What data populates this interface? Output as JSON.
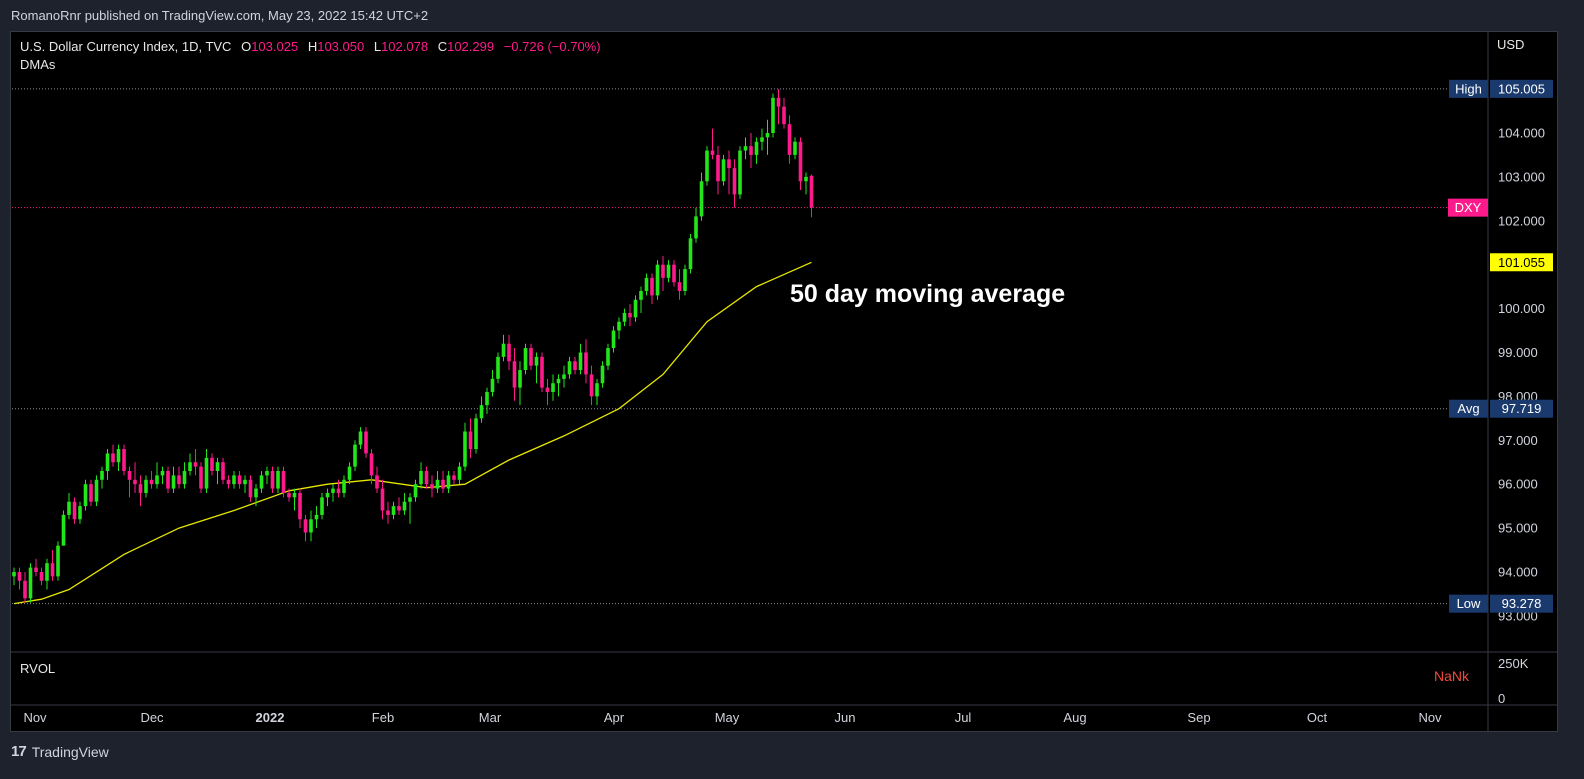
{
  "header": {
    "published": "RomanoRnr published on TradingView.com, May 23, 2022 15:42 UTC+2"
  },
  "legend": {
    "symbol": "U.S. Dollar Currency Index, 1D, TVC",
    "o_label": "O",
    "o": "103.025",
    "h_label": "H",
    "h": "103.050",
    "l_label": "L",
    "l": "102.078",
    "c_label": "C",
    "c": "102.299",
    "change": "−0.726 (−0.70%)",
    "indicator": "DMAs"
  },
  "annotation": "50 day moving average",
  "volume_pane": {
    "label": "RVOL",
    "value": "NaNk",
    "ticks": [
      "250K",
      "0"
    ]
  },
  "price_axis": {
    "currency": "USD"
  },
  "footer": {
    "brand": "TradingView",
    "logo_glyph": "17"
  },
  "colors": {
    "up": "#22e61a",
    "down": "#ff1a8c",
    "ma": "#e6e600",
    "level_label_bg": "#1a3a6e",
    "last_price_bg": "#ff1a8c",
    "ma_label_bg": "#ffff00"
  },
  "chart_data": {
    "type": "candlestick",
    "title": "U.S. Dollar Currency Index, 1D, TVC",
    "x_ticks": [
      "Nov",
      "Dec",
      "2022",
      "Feb",
      "Mar",
      "Apr",
      "May",
      "Jun",
      "Jul",
      "Aug",
      "Sep",
      "Oct",
      "Nov"
    ],
    "y_ticks": [
      "93.000",
      "94.000",
      "95.000",
      "96.000",
      "97.000",
      "98.000",
      "99.000",
      "100.000",
      "101.000",
      "102.000",
      "103.000",
      "104.000",
      "105.000"
    ],
    "y_range": [
      92.2,
      106.3
    ],
    "candles": [
      [
        93.9,
        94.1,
        93.7,
        94.0
      ],
      [
        94.0,
        94.1,
        93.6,
        93.8
      ],
      [
        93.8,
        94.0,
        93.3,
        93.4
      ],
      [
        93.4,
        94.2,
        93.3,
        94.1
      ],
      [
        94.1,
        94.3,
        93.9,
        94.0
      ],
      [
        94.0,
        94.1,
        93.7,
        93.8
      ],
      [
        93.8,
        94.3,
        93.6,
        94.2
      ],
      [
        94.2,
        94.5,
        93.8,
        93.9
      ],
      [
        93.9,
        94.7,
        93.8,
        94.6
      ],
      [
        94.6,
        95.4,
        94.6,
        95.3
      ],
      [
        95.3,
        95.8,
        95.2,
        95.6
      ],
      [
        95.6,
        95.7,
        95.1,
        95.2
      ],
      [
        95.2,
        95.6,
        95.1,
        95.5
      ],
      [
        95.5,
        96.1,
        95.4,
        96.0
      ],
      [
        96.0,
        96.1,
        95.5,
        95.6
      ],
      [
        95.6,
        96.2,
        95.5,
        96.1
      ],
      [
        96.1,
        96.4,
        95.9,
        96.3
      ],
      [
        96.3,
        96.8,
        96.1,
        96.7
      ],
      [
        96.7,
        96.9,
        96.4,
        96.5
      ],
      [
        96.5,
        96.9,
        96.3,
        96.8
      ],
      [
        96.8,
        96.9,
        96.2,
        96.3
      ],
      [
        96.3,
        96.4,
        95.7,
        96.1
      ],
      [
        96.1,
        96.5,
        95.8,
        96.0
      ],
      [
        96.0,
        96.2,
        95.5,
        95.8
      ],
      [
        95.8,
        96.2,
        95.7,
        96.1
      ],
      [
        96.1,
        96.3,
        95.9,
        96.0
      ],
      [
        96.0,
        96.5,
        95.9,
        96.2
      ],
      [
        96.2,
        96.4,
        96.0,
        96.3
      ],
      [
        96.3,
        96.4,
        95.8,
        95.9
      ],
      [
        95.9,
        96.4,
        95.8,
        96.2
      ],
      [
        96.2,
        96.4,
        95.9,
        96.0
      ],
      [
        96.0,
        96.5,
        95.9,
        96.3
      ],
      [
        96.3,
        96.7,
        96.2,
        96.5
      ],
      [
        96.5,
        96.8,
        96.2,
        96.4
      ],
      [
        96.4,
        96.5,
        95.8,
        95.9
      ],
      [
        95.9,
        96.8,
        95.8,
        96.6
      ],
      [
        96.6,
        96.7,
        96.2,
        96.3
      ],
      [
        96.3,
        96.6,
        96.0,
        96.5
      ],
      [
        96.5,
        96.6,
        96.0,
        96.1
      ],
      [
        96.1,
        96.2,
        95.9,
        96.0
      ],
      [
        96.0,
        96.3,
        95.9,
        96.2
      ],
      [
        96.2,
        96.3,
        95.9,
        96.0
      ],
      [
        96.0,
        96.2,
        95.8,
        96.1
      ],
      [
        96.1,
        96.2,
        95.6,
        95.7
      ],
      [
        95.7,
        96.0,
        95.5,
        95.9
      ],
      [
        95.9,
        96.3,
        95.8,
        96.2
      ],
      [
        96.2,
        96.4,
        96.0,
        96.3
      ],
      [
        96.3,
        96.4,
        95.8,
        95.9
      ],
      [
        95.9,
        96.4,
        95.8,
        96.3
      ],
      [
        96.3,
        96.4,
        95.7,
        95.8
      ],
      [
        95.8,
        95.9,
        95.6,
        95.7
      ],
      [
        95.7,
        95.9,
        95.4,
        95.8
      ],
      [
        95.8,
        95.9,
        95.0,
        95.2
      ],
      [
        95.2,
        95.3,
        94.7,
        94.9
      ],
      [
        94.9,
        95.4,
        94.7,
        95.2
      ],
      [
        95.2,
        95.5,
        95.0,
        95.3
      ],
      [
        95.3,
        95.8,
        95.2,
        95.7
      ],
      [
        95.7,
        95.9,
        95.5,
        95.8
      ],
      [
        95.8,
        96.0,
        95.6,
        95.9
      ],
      [
        95.9,
        96.1,
        95.7,
        95.8
      ],
      [
        95.8,
        96.2,
        95.7,
        96.1
      ],
      [
        96.1,
        96.5,
        96.0,
        96.4
      ],
      [
        96.4,
        97.0,
        96.3,
        96.9
      ],
      [
        96.9,
        97.3,
        96.8,
        97.2
      ],
      [
        97.2,
        97.3,
        96.6,
        96.7
      ],
      [
        96.7,
        96.8,
        96.0,
        96.2
      ],
      [
        96.2,
        96.4,
        95.8,
        95.9
      ],
      [
        95.9,
        96.1,
        95.2,
        95.4
      ],
      [
        95.4,
        95.6,
        95.1,
        95.3
      ],
      [
        95.3,
        95.6,
        95.2,
        95.5
      ],
      [
        95.5,
        95.7,
        95.3,
        95.4
      ],
      [
        95.4,
        95.8,
        95.3,
        95.6
      ],
      [
        95.6,
        95.8,
        95.1,
        95.7
      ],
      [
        95.7,
        96.1,
        95.6,
        96.0
      ],
      [
        96.0,
        96.5,
        95.9,
        96.3
      ],
      [
        96.3,
        96.4,
        95.9,
        96.0
      ],
      [
        96.0,
        96.2,
        95.7,
        95.9
      ],
      [
        95.9,
        96.3,
        95.8,
        96.1
      ],
      [
        96.1,
        96.3,
        95.8,
        95.9
      ],
      [
        95.9,
        96.3,
        95.8,
        96.2
      ],
      [
        96.2,
        96.3,
        96.0,
        96.1
      ],
      [
        96.1,
        96.5,
        96.0,
        96.4
      ],
      [
        96.4,
        97.4,
        96.3,
        97.2
      ],
      [
        97.2,
        97.5,
        96.6,
        96.8
      ],
      [
        96.8,
        97.6,
        96.7,
        97.5
      ],
      [
        97.5,
        98.0,
        97.4,
        97.8
      ],
      [
        97.8,
        98.2,
        97.6,
        98.1
      ],
      [
        98.1,
        98.6,
        98.0,
        98.4
      ],
      [
        98.4,
        99.0,
        98.3,
        98.9
      ],
      [
        98.9,
        99.4,
        98.8,
        99.2
      ],
      [
        99.2,
        99.4,
        98.6,
        98.8
      ],
      [
        98.8,
        99.1,
        97.9,
        98.2
      ],
      [
        98.2,
        98.8,
        97.8,
        98.6
      ],
      [
        98.6,
        99.2,
        98.5,
        99.1
      ],
      [
        99.1,
        99.2,
        98.6,
        98.7
      ],
      [
        98.7,
        99.0,
        98.3,
        98.9
      ],
      [
        98.9,
        99.0,
        98.1,
        98.2
      ],
      [
        98.2,
        98.4,
        97.8,
        98.1
      ],
      [
        98.1,
        98.5,
        97.9,
        98.3
      ],
      [
        98.3,
        98.5,
        98.0,
        98.4
      ],
      [
        98.4,
        98.7,
        98.2,
        98.5
      ],
      [
        98.5,
        98.9,
        98.4,
        98.8
      ],
      [
        98.8,
        98.9,
        98.5,
        98.6
      ],
      [
        98.6,
        99.2,
        98.5,
        99.0
      ],
      [
        99.0,
        99.3,
        98.3,
        98.5
      ],
      [
        98.5,
        98.7,
        97.8,
        98.0
      ],
      [
        98.0,
        98.4,
        97.8,
        98.3
      ],
      [
        98.3,
        98.8,
        98.2,
        98.7
      ],
      [
        98.7,
        99.2,
        98.6,
        99.1
      ],
      [
        99.1,
        99.6,
        99.0,
        99.5
      ],
      [
        99.5,
        99.8,
        99.3,
        99.7
      ],
      [
        99.7,
        100.0,
        99.6,
        99.9
      ],
      [
        99.9,
        100.1,
        99.6,
        99.8
      ],
      [
        99.8,
        100.3,
        99.7,
        100.2
      ],
      [
        100.2,
        100.5,
        99.9,
        100.4
      ],
      [
        100.4,
        100.8,
        100.3,
        100.7
      ],
      [
        100.7,
        100.8,
        100.1,
        100.3
      ],
      [
        100.3,
        101.1,
        100.2,
        101.0
      ],
      [
        101.0,
        101.2,
        100.4,
        100.7
      ],
      [
        100.7,
        101.1,
        100.6,
        101.0
      ],
      [
        101.0,
        101.1,
        100.5,
        100.6
      ],
      [
        100.6,
        100.9,
        100.2,
        100.4
      ],
      [
        100.4,
        101.0,
        100.3,
        100.9
      ],
      [
        100.9,
        101.7,
        100.8,
        101.6
      ],
      [
        101.6,
        102.3,
        101.5,
        102.1
      ],
      [
        102.1,
        103.1,
        102.0,
        102.9
      ],
      [
        102.9,
        103.7,
        102.8,
        103.6
      ],
      [
        103.6,
        104.1,
        103.4,
        103.5
      ],
      [
        103.5,
        103.7,
        102.6,
        102.9
      ],
      [
        102.9,
        103.5,
        102.8,
        103.4
      ],
      [
        103.4,
        103.6,
        102.6,
        103.2
      ],
      [
        103.2,
        103.4,
        102.3,
        102.6
      ],
      [
        102.6,
        103.7,
        102.5,
        103.6
      ],
      [
        103.6,
        103.9,
        103.4,
        103.7
      ],
      [
        103.7,
        104.0,
        103.2,
        103.5
      ],
      [
        103.5,
        103.9,
        103.3,
        103.8
      ],
      [
        103.8,
        104.1,
        103.6,
        103.9
      ],
      [
        103.9,
        104.3,
        103.5,
        104.0
      ],
      [
        104.0,
        104.9,
        103.9,
        104.8
      ],
      [
        104.8,
        105.0,
        104.2,
        104.6
      ],
      [
        104.6,
        104.8,
        104.1,
        104.2
      ],
      [
        104.2,
        104.4,
        103.3,
        103.5
      ],
      [
        103.5,
        103.9,
        103.4,
        103.8
      ],
      [
        103.8,
        103.9,
        102.7,
        102.9
      ],
      [
        102.9,
        103.1,
        102.6,
        103.0
      ],
      [
        103.025,
        103.05,
        102.078,
        102.299
      ]
    ],
    "moving_average": {
      "name": "50 day moving average",
      "values": [
        [
          0,
          93.28
        ],
        [
          5,
          93.38
        ],
        [
          10,
          93.6
        ],
        [
          20,
          94.4
        ],
        [
          30,
          95.0
        ],
        [
          40,
          95.4
        ],
        [
          50,
          95.85
        ],
        [
          57,
          96.0
        ],
        [
          65,
          96.1
        ],
        [
          75,
          95.92
        ],
        [
          82,
          96.0
        ],
        [
          90,
          96.55
        ],
        [
          100,
          97.1
        ],
        [
          110,
          97.72
        ],
        [
          118,
          98.5
        ],
        [
          126,
          99.7
        ],
        [
          135,
          100.5
        ],
        [
          145,
          101.055
        ]
      ]
    },
    "levels": [
      {
        "label": "High",
        "value": "105.005",
        "y": 105.005
      },
      {
        "label": "Avg",
        "value": "97.719",
        "y": 97.719
      },
      {
        "label": "Low",
        "value": "93.278",
        "y": 93.278
      }
    ],
    "last_price": {
      "label": "DXY",
      "y": 102.299
    },
    "ma_last": {
      "value": "101.055",
      "y": 101.055
    }
  }
}
